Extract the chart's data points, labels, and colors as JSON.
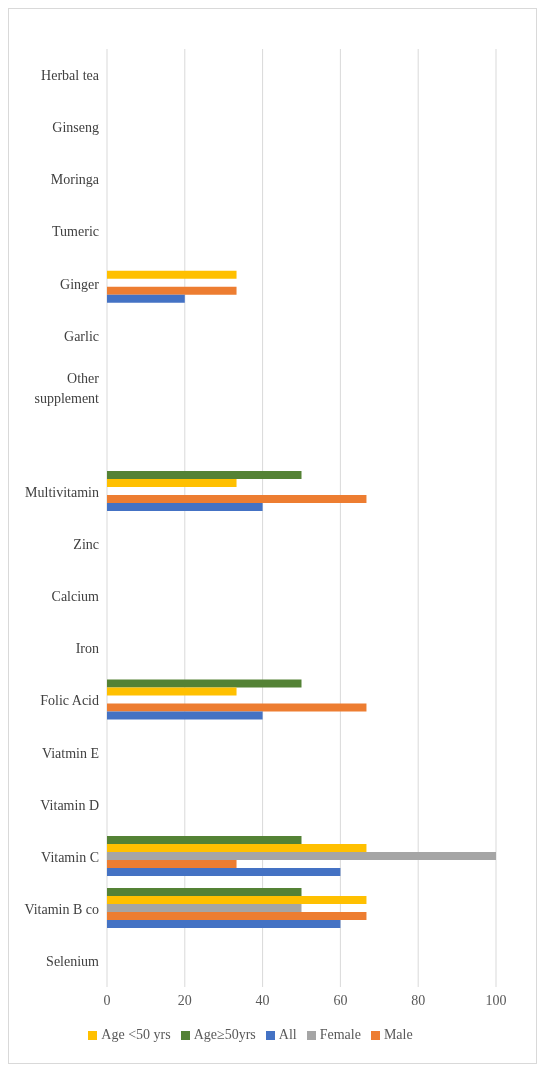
{
  "chart_data": {
    "type": "bar",
    "orientation": "horizontal",
    "categories": [
      "Herbal tea",
      "Ginseng",
      "Moringa",
      "Tumeric",
      "Ginger",
      "Garlic",
      "Other supplement",
      null,
      "Multivitamin",
      "Zinc",
      "Calcium",
      "Iron",
      "Folic Acid",
      "Viatmin E",
      "Vitamin D",
      "Vitamin C",
      "Vitamin B co",
      "Selenium"
    ],
    "series": [
      {
        "name": "Age≥50yrs",
        "color": "#548235",
        "values": [
          0,
          0,
          0,
          0,
          0,
          0,
          0,
          0,
          50,
          0,
          0,
          0,
          50,
          0,
          0,
          50,
          50,
          0
        ]
      },
      {
        "name": "Age <50 yrs",
        "color": "#ffc000",
        "values": [
          0,
          0,
          0,
          0,
          33.3,
          0,
          0,
          0,
          33.3,
          0,
          0,
          0,
          33.3,
          0,
          0,
          66.7,
          66.7,
          0
        ]
      },
      {
        "name": "Female",
        "color": "#a5a5a5",
        "values": [
          0,
          0,
          0,
          0,
          0,
          0,
          0,
          0,
          0,
          0,
          0,
          0,
          0,
          0,
          0,
          100,
          50,
          0
        ]
      },
      {
        "name": "Male",
        "color": "#ed7d31",
        "values": [
          0,
          0,
          0,
          0,
          33.3,
          0,
          0,
          0,
          66.7,
          0,
          0,
          0,
          66.7,
          0,
          0,
          33.3,
          66.7,
          0
        ]
      },
      {
        "name": "All",
        "color": "#4472c4",
        "values": [
          0,
          0,
          0,
          0,
          20,
          0,
          0,
          0,
          40,
          0,
          0,
          0,
          40,
          0,
          0,
          60,
          60,
          0
        ]
      }
    ],
    "xlim": [
      0,
      100
    ],
    "xticks": [
      0,
      20,
      40,
      60,
      80,
      100
    ],
    "grid": "x",
    "legend": "bottom"
  }
}
